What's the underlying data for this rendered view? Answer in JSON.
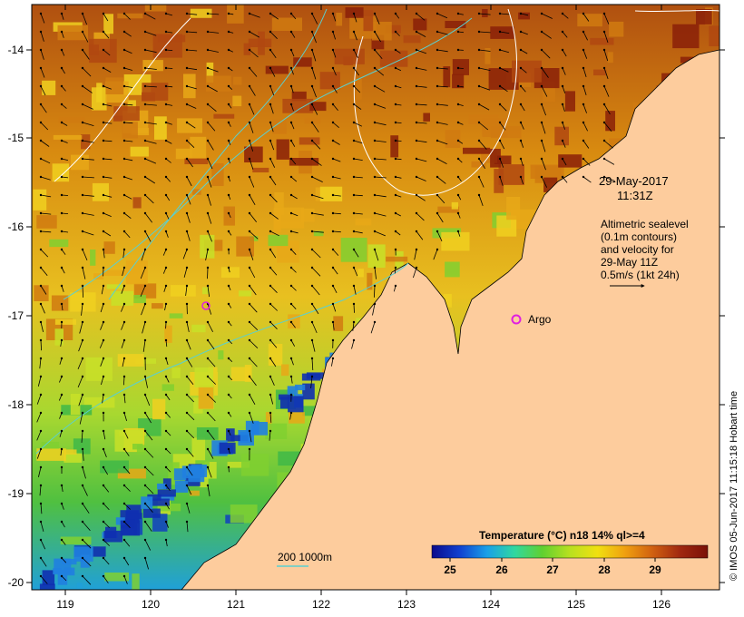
{
  "map": {
    "lon_ticks": [
      "119",
      "120",
      "121",
      "122",
      "123",
      "124",
      "125",
      "126"
    ],
    "lat_ticks": [
      "-14",
      "-15",
      "-16",
      "-17",
      "-18",
      "-19",
      "-20"
    ],
    "land_color": "#fdcc9d",
    "contour_color": "#ffffff",
    "isobath_color": "#5ad0d0"
  },
  "date": {
    "line1": "29-May-2017",
    "line2": "11:31Z"
  },
  "altimetry": {
    "line1": "Altimetric sealevel",
    "line2": "(0.1m contours)",
    "line3": "and velocity for",
    "line4": "29-May 11Z",
    "line5": "0.5m/s (1kt 24h)"
  },
  "argo": {
    "label": "Argo",
    "color": "#e020e0"
  },
  "isobath_legend": {
    "label": "200  1000m"
  },
  "colorbar": {
    "title": "Temperature (°C) n18 14% ql>=4",
    "ticks": [
      "25",
      "26",
      "27",
      "28",
      "29"
    ],
    "colors": [
      "#0a0a8c",
      "#1040d0",
      "#1aa0e8",
      "#30d8a0",
      "#60d030",
      "#b8e020",
      "#f0e010",
      "#f0a010",
      "#d06010",
      "#a02810",
      "#7a1008"
    ]
  },
  "credit": "© IMOS 05-Jun-2017 11:15:18 Hobart time"
}
